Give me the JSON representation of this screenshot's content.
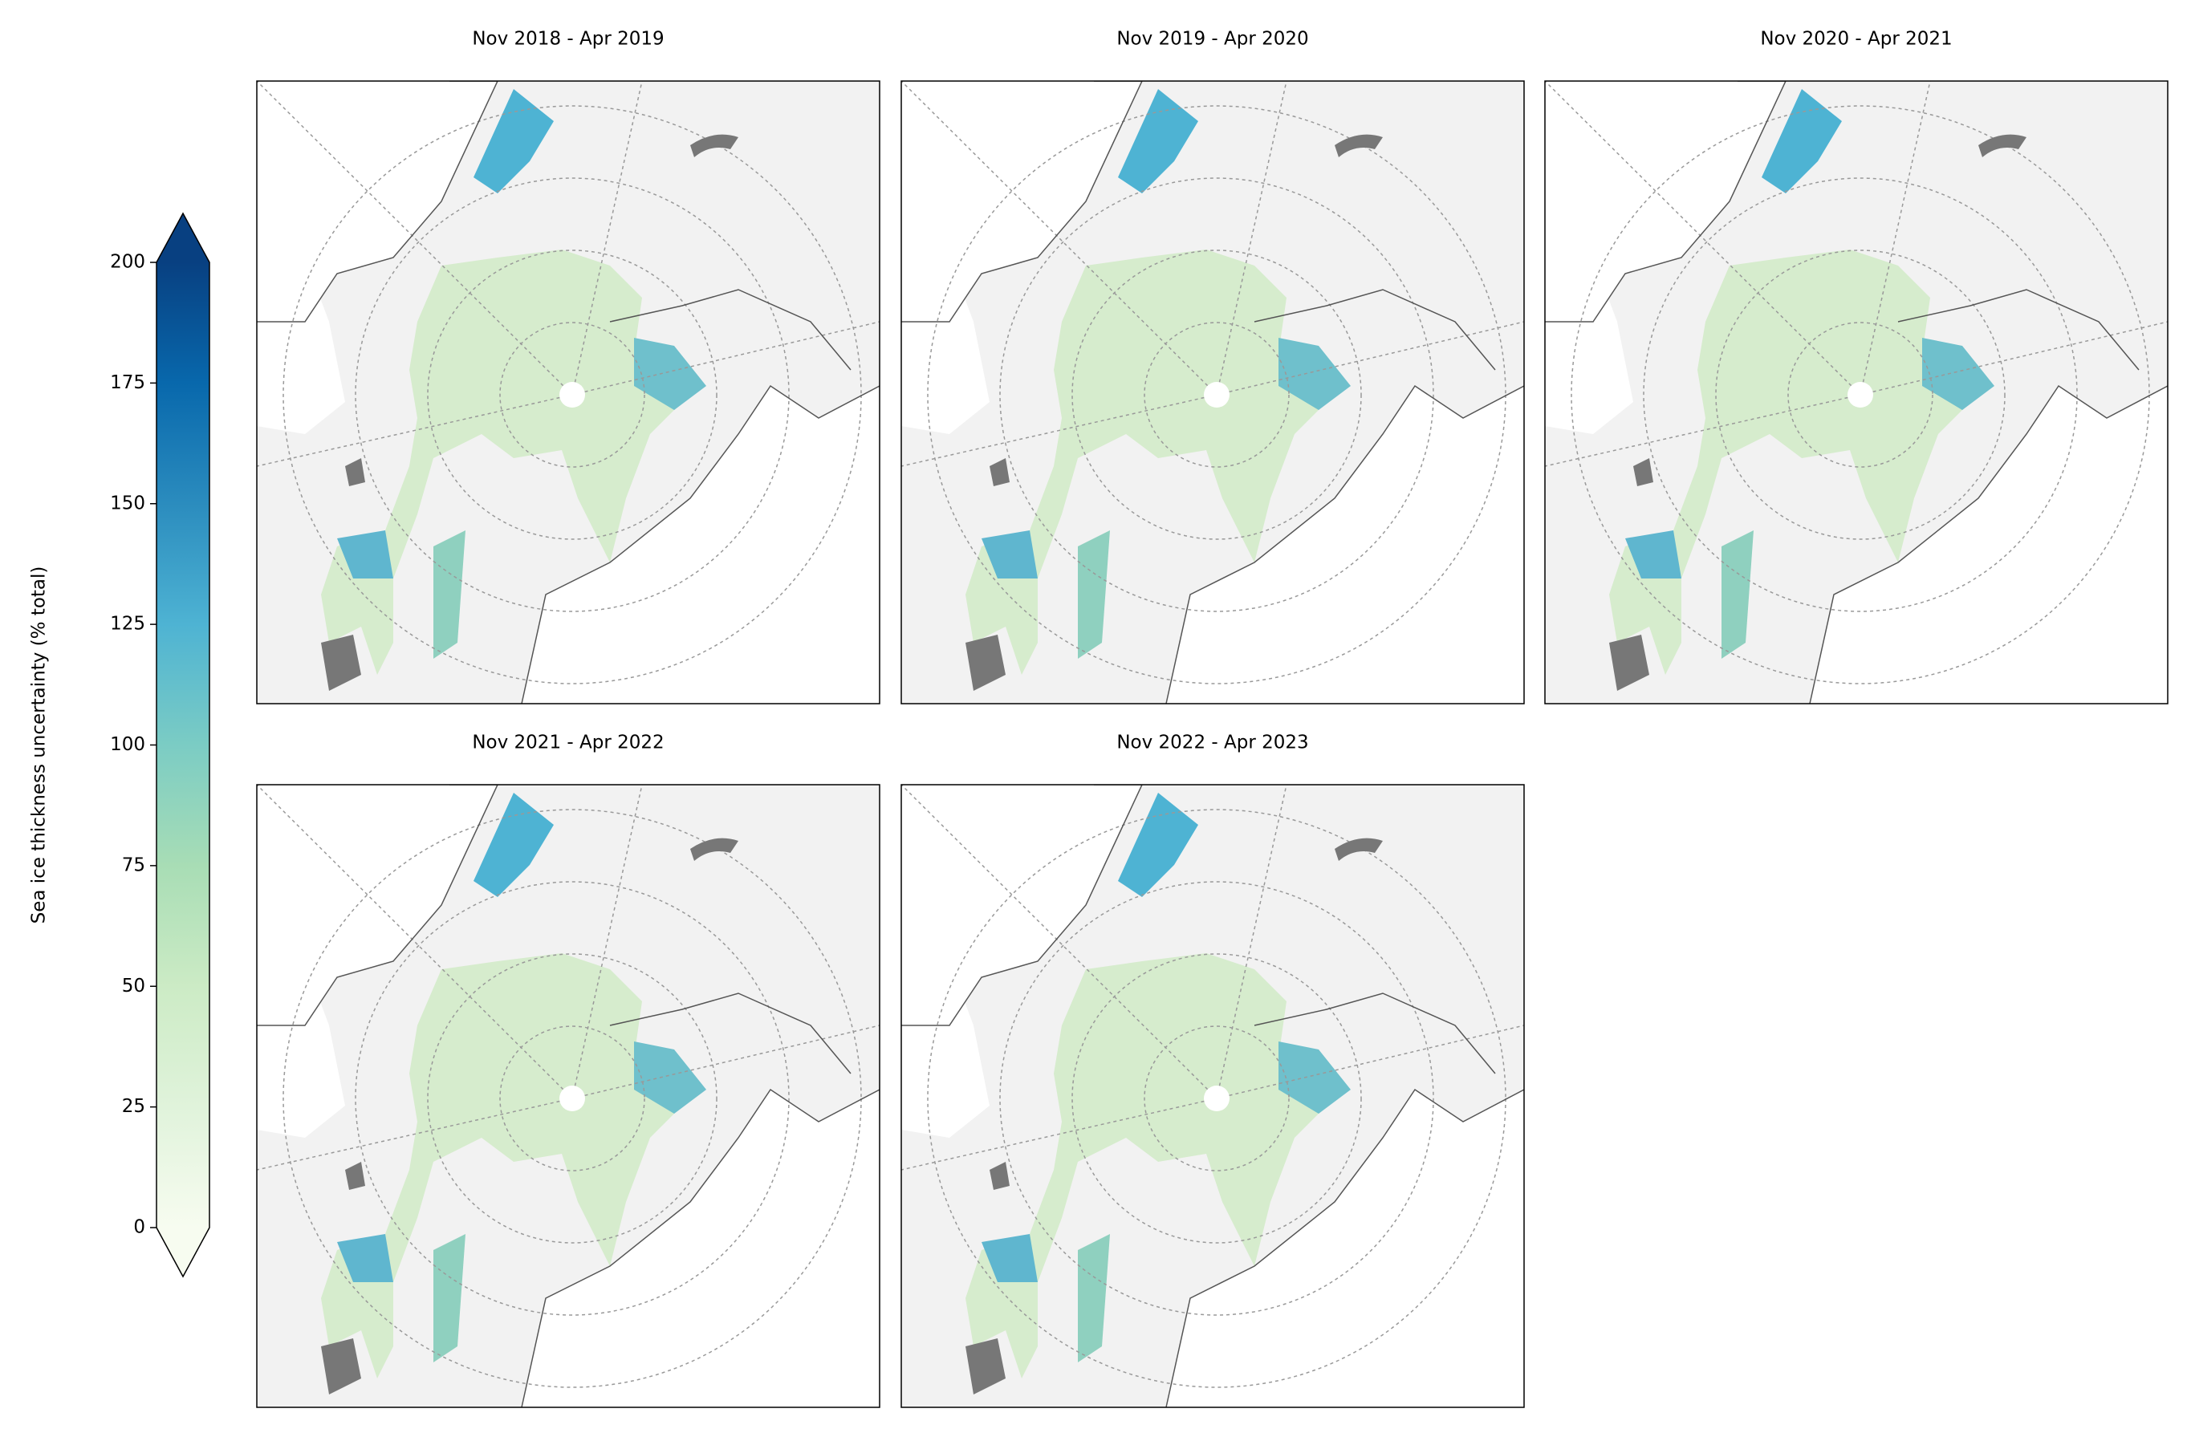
{
  "panels": [
    {
      "title": "Nov 2018 - Apr 2019"
    },
    {
      "title": "Nov 2019 - Apr 2020"
    },
    {
      "title": "Nov 2020 - Apr 2021"
    },
    {
      "title": "Nov 2021 - Apr 2022"
    },
    {
      "title": "Nov 2022 - Apr 2023"
    }
  ],
  "colorbar": {
    "label": "Sea ice thickness uncertainty (% total)",
    "lim": [
      0,
      200
    ],
    "ticks": [
      0,
      25,
      50,
      75,
      100,
      125,
      150,
      175,
      200
    ],
    "colors": [
      "#f7fcf0",
      "#e0f3db",
      "#ccebc5",
      "#a8ddb5",
      "#7bccc4",
      "#4eb3d3",
      "#2b8cbe",
      "#0868ac",
      "#084081"
    ]
  }
}
